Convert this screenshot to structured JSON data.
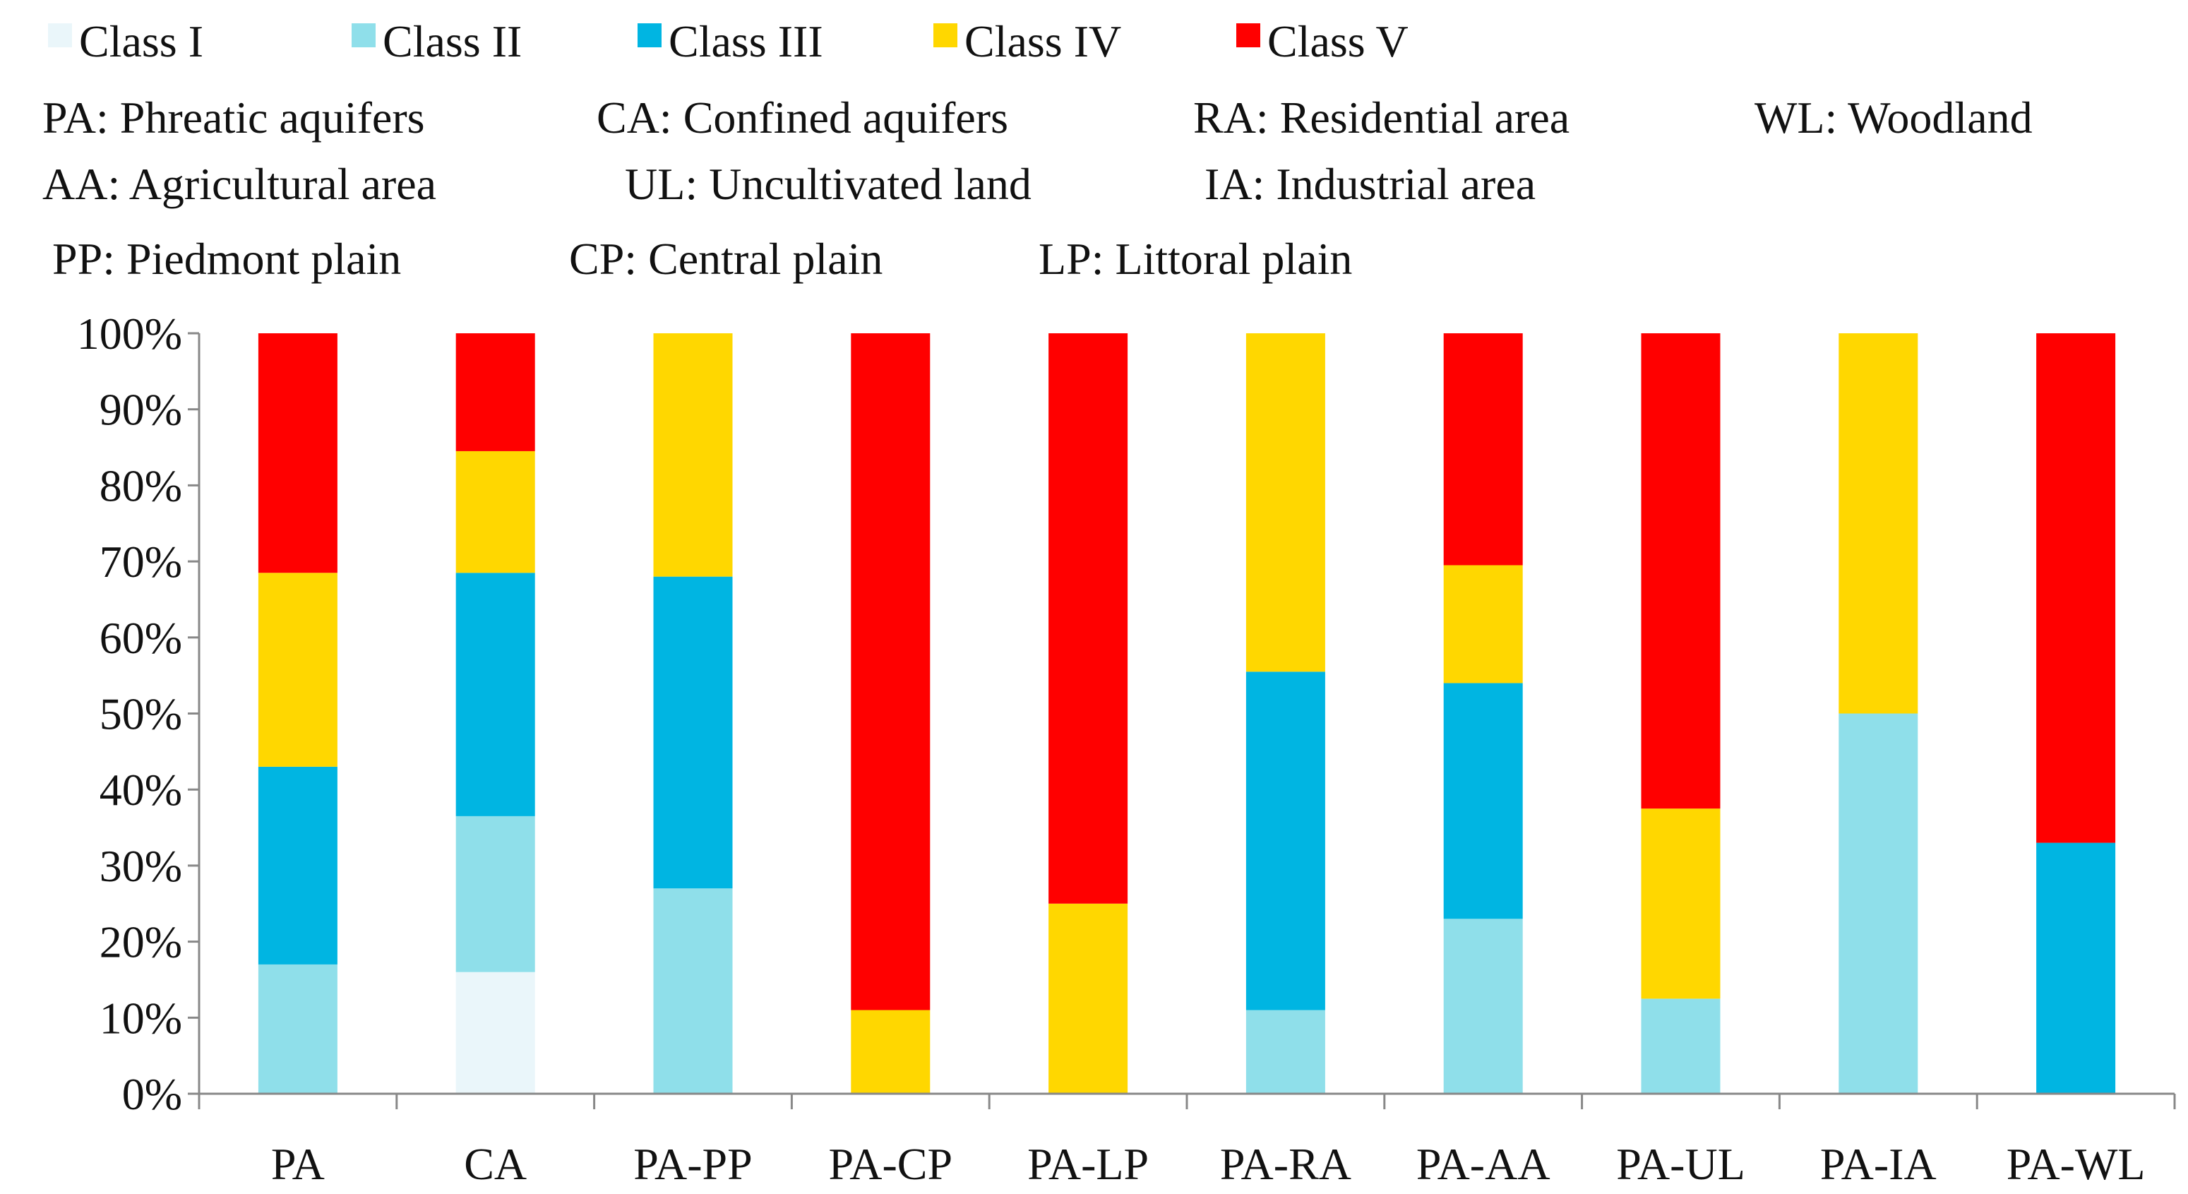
{
  "chart_data": {
    "type": "bar",
    "stacked": true,
    "normalized": true,
    "categories": [
      "PA",
      "CA",
      "PA-PP",
      "PA-CP",
      "PA-LP",
      "PA-RA",
      "PA-AA",
      "PA-UL",
      "PA-IA",
      "PA-WL"
    ],
    "series": [
      {
        "name": "Class I",
        "color": "#eaf6fa",
        "values": [
          0,
          16,
          0,
          0,
          0,
          0,
          0,
          0,
          0,
          0
        ]
      },
      {
        "name": "Class II",
        "color": "#8fdfea",
        "values": [
          17,
          20.5,
          27,
          0,
          0,
          11,
          23,
          12.5,
          50,
          0
        ]
      },
      {
        "name": "Class III",
        "color": "#00b5e2",
        "values": [
          26,
          32,
          41,
          0,
          0,
          44.5,
          31,
          0,
          0,
          33
        ]
      },
      {
        "name": "Class IV",
        "color": "#ffd700",
        "values": [
          25.5,
          16,
          32,
          11,
          25,
          44.5,
          15.5,
          25,
          50,
          0
        ]
      },
      {
        "name": "Class V",
        "color": "#ff0000",
        "values": [
          31.5,
          15.5,
          0,
          89,
          75,
          0,
          30.5,
          62.5,
          0,
          67
        ]
      }
    ],
    "ylim": [
      0,
      100
    ],
    "yticks": [
      "0%",
      "10%",
      "20%",
      "30%",
      "40%",
      "50%",
      "60%",
      "70%",
      "80%",
      "90%",
      "100%"
    ],
    "grid": false,
    "legend": "top",
    "notes": [
      [
        "PA: Phreatic aquifers",
        "CA: Confined aquifers",
        "RA: Residential area",
        "WL: Woodland"
      ],
      [
        "AA: Agricultural area",
        "UL: Uncultivated land",
        "IA: Industrial area"
      ],
      [
        "PP: Piedmont plain",
        "CP: Central plain",
        "LP: Littoral plain"
      ]
    ]
  }
}
